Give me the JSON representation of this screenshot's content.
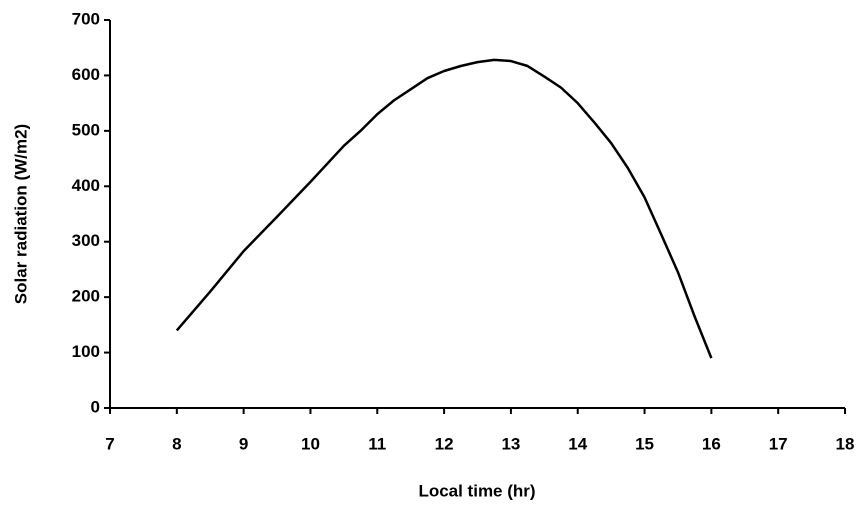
{
  "chart_data": {
    "type": "line",
    "xlabel": "Local time (hr)",
    "ylabel": "Solar radiation (W/m2)",
    "x": [
      8,
      8.5,
      9,
      9.5,
      10,
      10.5,
      10.75,
      11,
      11.25,
      11.5,
      11.75,
      12,
      12.25,
      12.5,
      12.75,
      13,
      13.25,
      13.5,
      13.75,
      14,
      14.25,
      14.5,
      14.75,
      15,
      15.25,
      15.5,
      15.75,
      16
    ],
    "values": [
      140,
      210,
      283,
      345,
      408,
      473,
      500,
      530,
      555,
      575,
      595,
      608,
      617,
      624,
      628,
      626,
      617,
      598,
      578,
      550,
      515,
      478,
      433,
      380,
      313,
      245,
      165,
      90
    ],
    "color": "#000000",
    "xlim": [
      7,
      18
    ],
    "xticks": [
      7,
      8,
      9,
      10,
      11,
      12,
      13,
      14,
      15,
      16,
      17,
      18
    ],
    "ylim": [
      0,
      700
    ],
    "yticks": [
      0,
      100,
      200,
      300,
      400,
      500,
      600,
      700
    ],
    "grid": false
  }
}
